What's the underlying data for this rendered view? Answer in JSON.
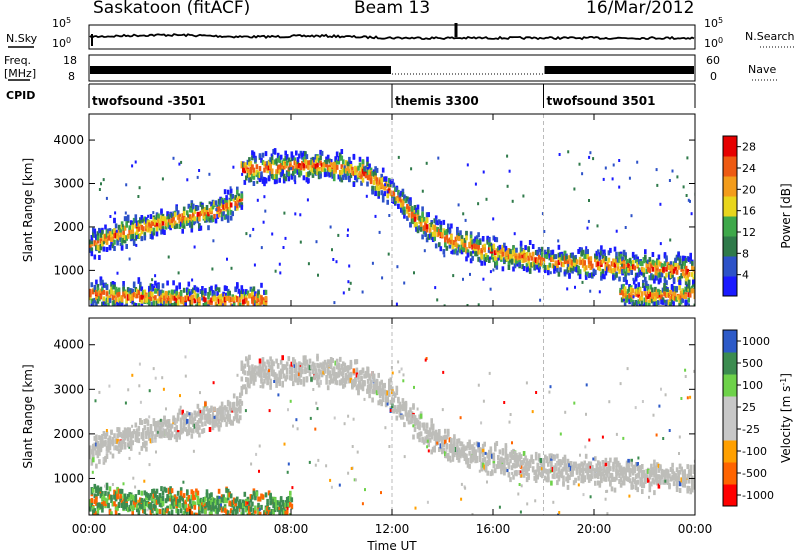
{
  "header": {
    "station": "Saskatoon (fitACF)",
    "beam": "Beam 13",
    "date": "16/Mar/2012"
  },
  "panels": {
    "nsky_label": "N.Sky",
    "nsearch_label": "N.Search",
    "freq_label_line1": "Freq.",
    "freq_label_line2": "[MHz]",
    "nave_label": "Nave",
    "cpid_label": "CPID",
    "nsky_ticks": [
      "10^5",
      "10^0"
    ],
    "nsearch_ticks": [
      "10^5",
      "10^0"
    ],
    "freq_ticks": [
      "18",
      "8"
    ],
    "nave_ticks": [
      "60",
      "0"
    ],
    "cpid_segments": [
      {
        "start_h": 0,
        "end_h": 12,
        "label": "twofsound -3501"
      },
      {
        "start_h": 12,
        "end_h": 18,
        "label": "themis 3300"
      },
      {
        "start_h": 18,
        "end_h": 24,
        "label": "twofsound 3501"
      }
    ]
  },
  "colors": {
    "power_scale": [
      "#1a1aff",
      "#2d52c8",
      "#2f7a4a",
      "#3ea84a",
      "#e8d51c",
      "#f39c1b",
      "#ee5a12",
      "#e60000"
    ],
    "velocity_scale": [
      "#ff0000",
      "#ff6400",
      "#ffa000",
      "#c8c8c8",
      "#c8c8c8",
      "#6ed24a",
      "#3c8c50",
      "#2d5ac8"
    ],
    "ground_scatter": "#bdbdb9"
  },
  "chart_data": [
    {
      "type": "heatmap",
      "title": "",
      "xlabel": "",
      "ylabel": "Slant Range [km]",
      "xlim": [
        0,
        24
      ],
      "ylim": [
        180,
        4600
      ],
      "x_ticks": [
        "00:00",
        "04:00",
        "08:00",
        "12:00",
        "16:00",
        "20:00",
        "00:00"
      ],
      "y_ticks": [
        1000,
        2000,
        3000,
        4000
      ],
      "colorbar": {
        "label": "Power [dB]",
        "ticks": [
          4,
          8,
          12,
          16,
          20,
          24,
          28
        ],
        "range": [
          0,
          30
        ]
      },
      "echo_bands": [
        {
          "x": [
            0,
            1,
            2,
            3,
            4,
            5,
            6
          ],
          "y": [
            1550,
            1800,
            1950,
            2100,
            2250,
            2350,
            2600
          ]
        },
        {
          "x": [
            0,
            1,
            2,
            3,
            4,
            5,
            6,
            7
          ],
          "y": [
            450,
            400,
            380,
            350,
            320,
            300,
            290,
            300
          ]
        },
        {
          "x": [
            6,
            7,
            8,
            9,
            10,
            11
          ],
          "y": [
            3300,
            3350,
            3380,
            3400,
            3350,
            3200
          ]
        },
        {
          "x": [
            11,
            12,
            13,
            14,
            15,
            16,
            17,
            18,
            19,
            20,
            21,
            22,
            23,
            24
          ],
          "y": [
            3150,
            2800,
            2100,
            1750,
            1550,
            1400,
            1300,
            1200,
            1150,
            1150,
            1100,
            1050,
            1000,
            950
          ]
        },
        {
          "x": [
            21,
            22,
            23,
            24
          ],
          "y": [
            450,
            400,
            400,
            450
          ]
        }
      ],
      "tx_modes": [
        {
          "at_h": 12
        },
        {
          "at_h": 18
        }
      ]
    },
    {
      "type": "heatmap",
      "title": "",
      "xlabel": "Time UT",
      "ylabel": "Slant Range [km]",
      "xlim": [
        0,
        24
      ],
      "ylim": [
        180,
        4600
      ],
      "x_ticks": [
        "00:00",
        "04:00",
        "08:00",
        "12:00",
        "16:00",
        "20:00",
        "00:00"
      ],
      "y_ticks": [
        1000,
        2000,
        3000,
        4000
      ],
      "colorbar": {
        "label": "Velocity [m s^-1]",
        "ticks": [
          "-1000",
          "-500",
          "-100",
          "-25",
          "25",
          "100",
          "500",
          "1000"
        ]
      },
      "echo_bands": [
        {
          "x": [
            0,
            1,
            2,
            3,
            4,
            5,
            6
          ],
          "y": [
            1550,
            1800,
            1950,
            2100,
            2250,
            2350,
            2600
          ]
        },
        {
          "x": [
            6,
            7,
            8,
            9,
            10,
            11
          ],
          "y": [
            3300,
            3350,
            3380,
            3400,
            3350,
            3200
          ]
        },
        {
          "x": [
            11,
            12,
            13,
            14,
            15,
            16,
            17,
            18,
            19,
            20,
            21,
            22,
            23,
            24
          ],
          "y": [
            3150,
            2800,
            2100,
            1750,
            1550,
            1400,
            1300,
            1200,
            1150,
            1150,
            1100,
            1050,
            1000,
            950
          ]
        },
        {
          "x": [
            0,
            2,
            4,
            6,
            8
          ],
          "y": [
            500,
            450,
            400,
            380,
            380
          ]
        }
      ]
    }
  ]
}
